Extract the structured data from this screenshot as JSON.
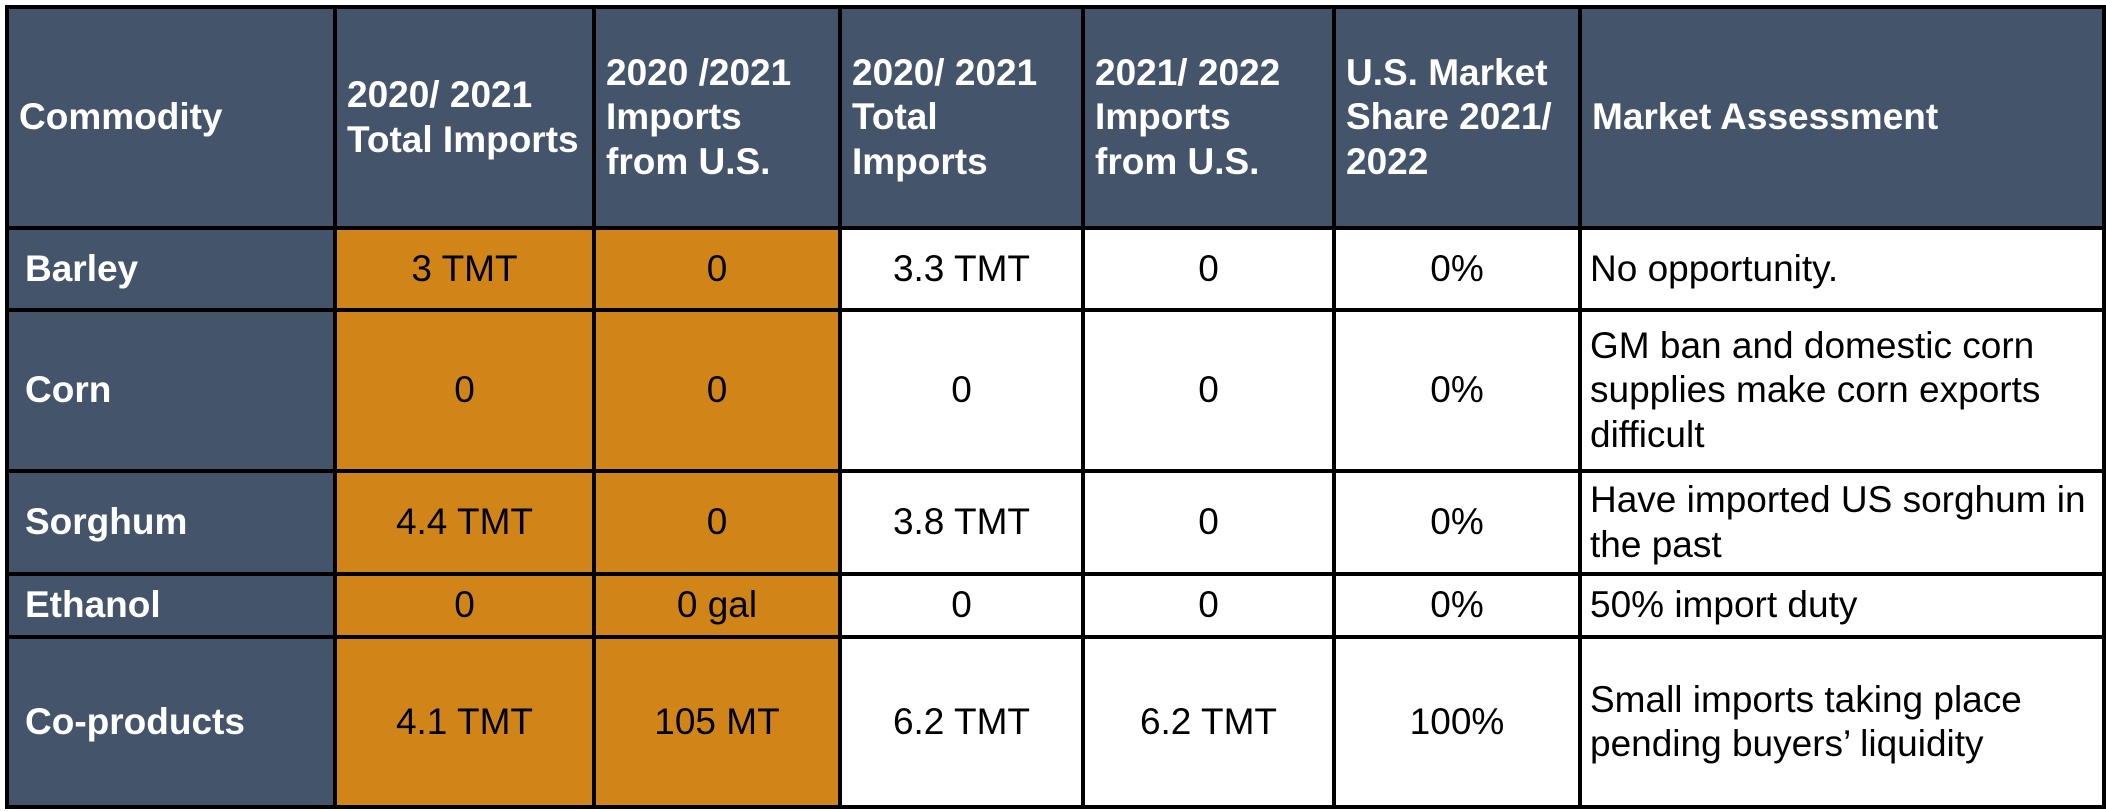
{
  "table": {
    "headers": [
      "Commodity",
      "2020/ 2021 Total Imports",
      "2020 /2021 Imports from U.S.",
      "2020/ 2021 Total Imports",
      "2021/ 2022 Imports from U.S.",
      "U.S. Market Share 2021/ 2022",
      "Market Assessment"
    ],
    "rows": [
      [
        "Barley",
        "3 TMT",
        "0",
        "3.3 TMT",
        "0",
        "0%",
        "No opportunity."
      ],
      [
        "Corn",
        "0",
        "0",
        "0",
        "0",
        "0%",
        "GM ban and domestic corn supplies make corn exports difficult"
      ],
      [
        "Sorghum",
        "4.4 TMT",
        "0",
        "3.8 TMT",
        "0",
        "0%",
        "Have imported US sorghum in the past"
      ],
      [
        "Ethanol",
        "0",
        "0 gal",
        "0",
        "0",
        "0%",
        "50% import duty"
      ],
      [
        "Co-products",
        "4.1 TMT",
        "105 MT",
        "6.2 TMT",
        "6.2 TMT",
        "100%",
        "Small imports taking place pending buyers’ liquidity"
      ]
    ]
  }
}
